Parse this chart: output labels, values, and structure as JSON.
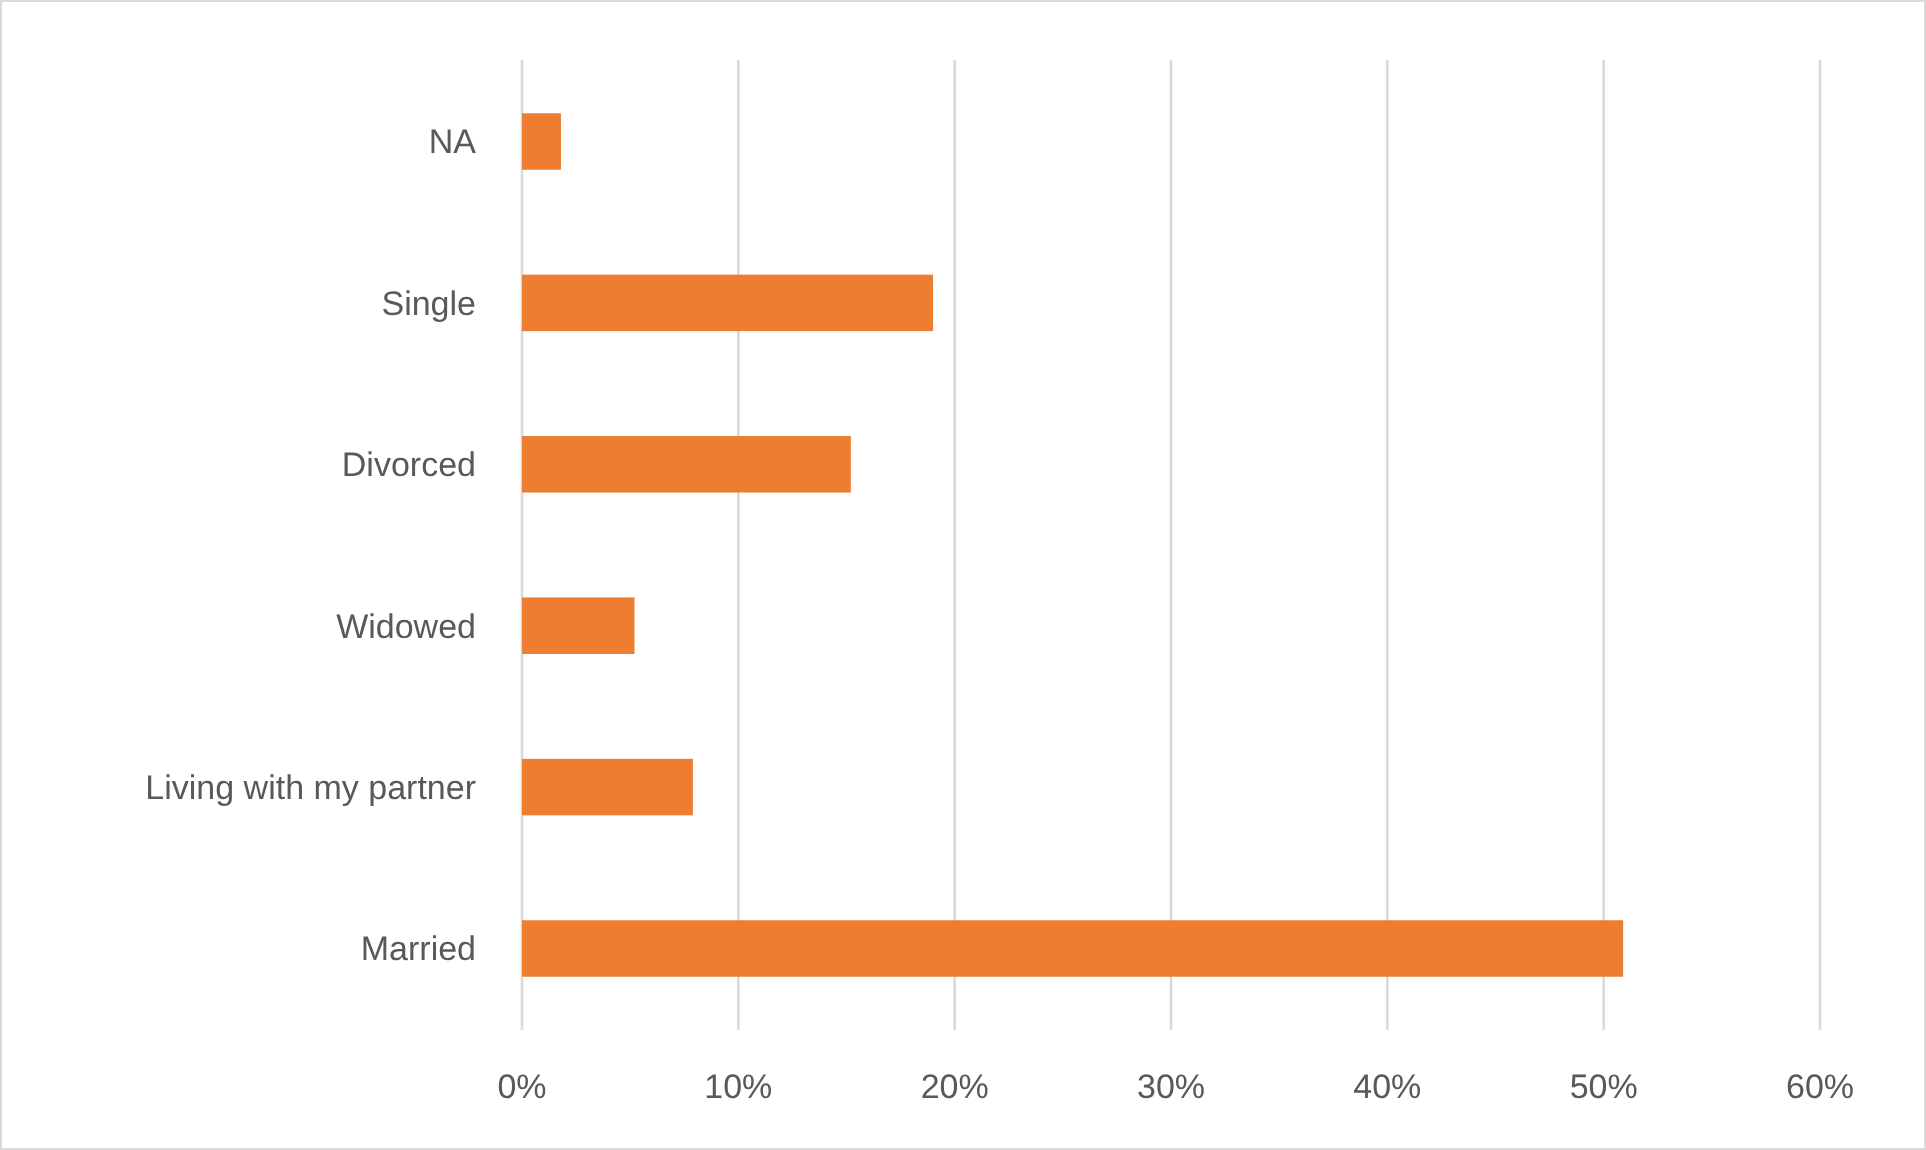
{
  "chart_data": {
    "type": "bar",
    "orientation": "horizontal",
    "categories": [
      "NA",
      "Single",
      "Divorced",
      "Widowed",
      "Living with my partner",
      "Married"
    ],
    "values": [
      1.8,
      19.0,
      15.2,
      5.2,
      7.9,
      50.9
    ],
    "color": "#ed7d31",
    "xlim": [
      0,
      60
    ],
    "xticks": [
      {
        "value": 0,
        "label": "0%"
      },
      {
        "value": 10,
        "label": "10%"
      },
      {
        "value": 20,
        "label": "20%"
      },
      {
        "value": 30,
        "label": "30%"
      },
      {
        "value": 40,
        "label": "40%"
      },
      {
        "value": 50,
        "label": "50%"
      },
      {
        "value": 60,
        "label": "60%"
      }
    ],
    "grid": "x"
  }
}
